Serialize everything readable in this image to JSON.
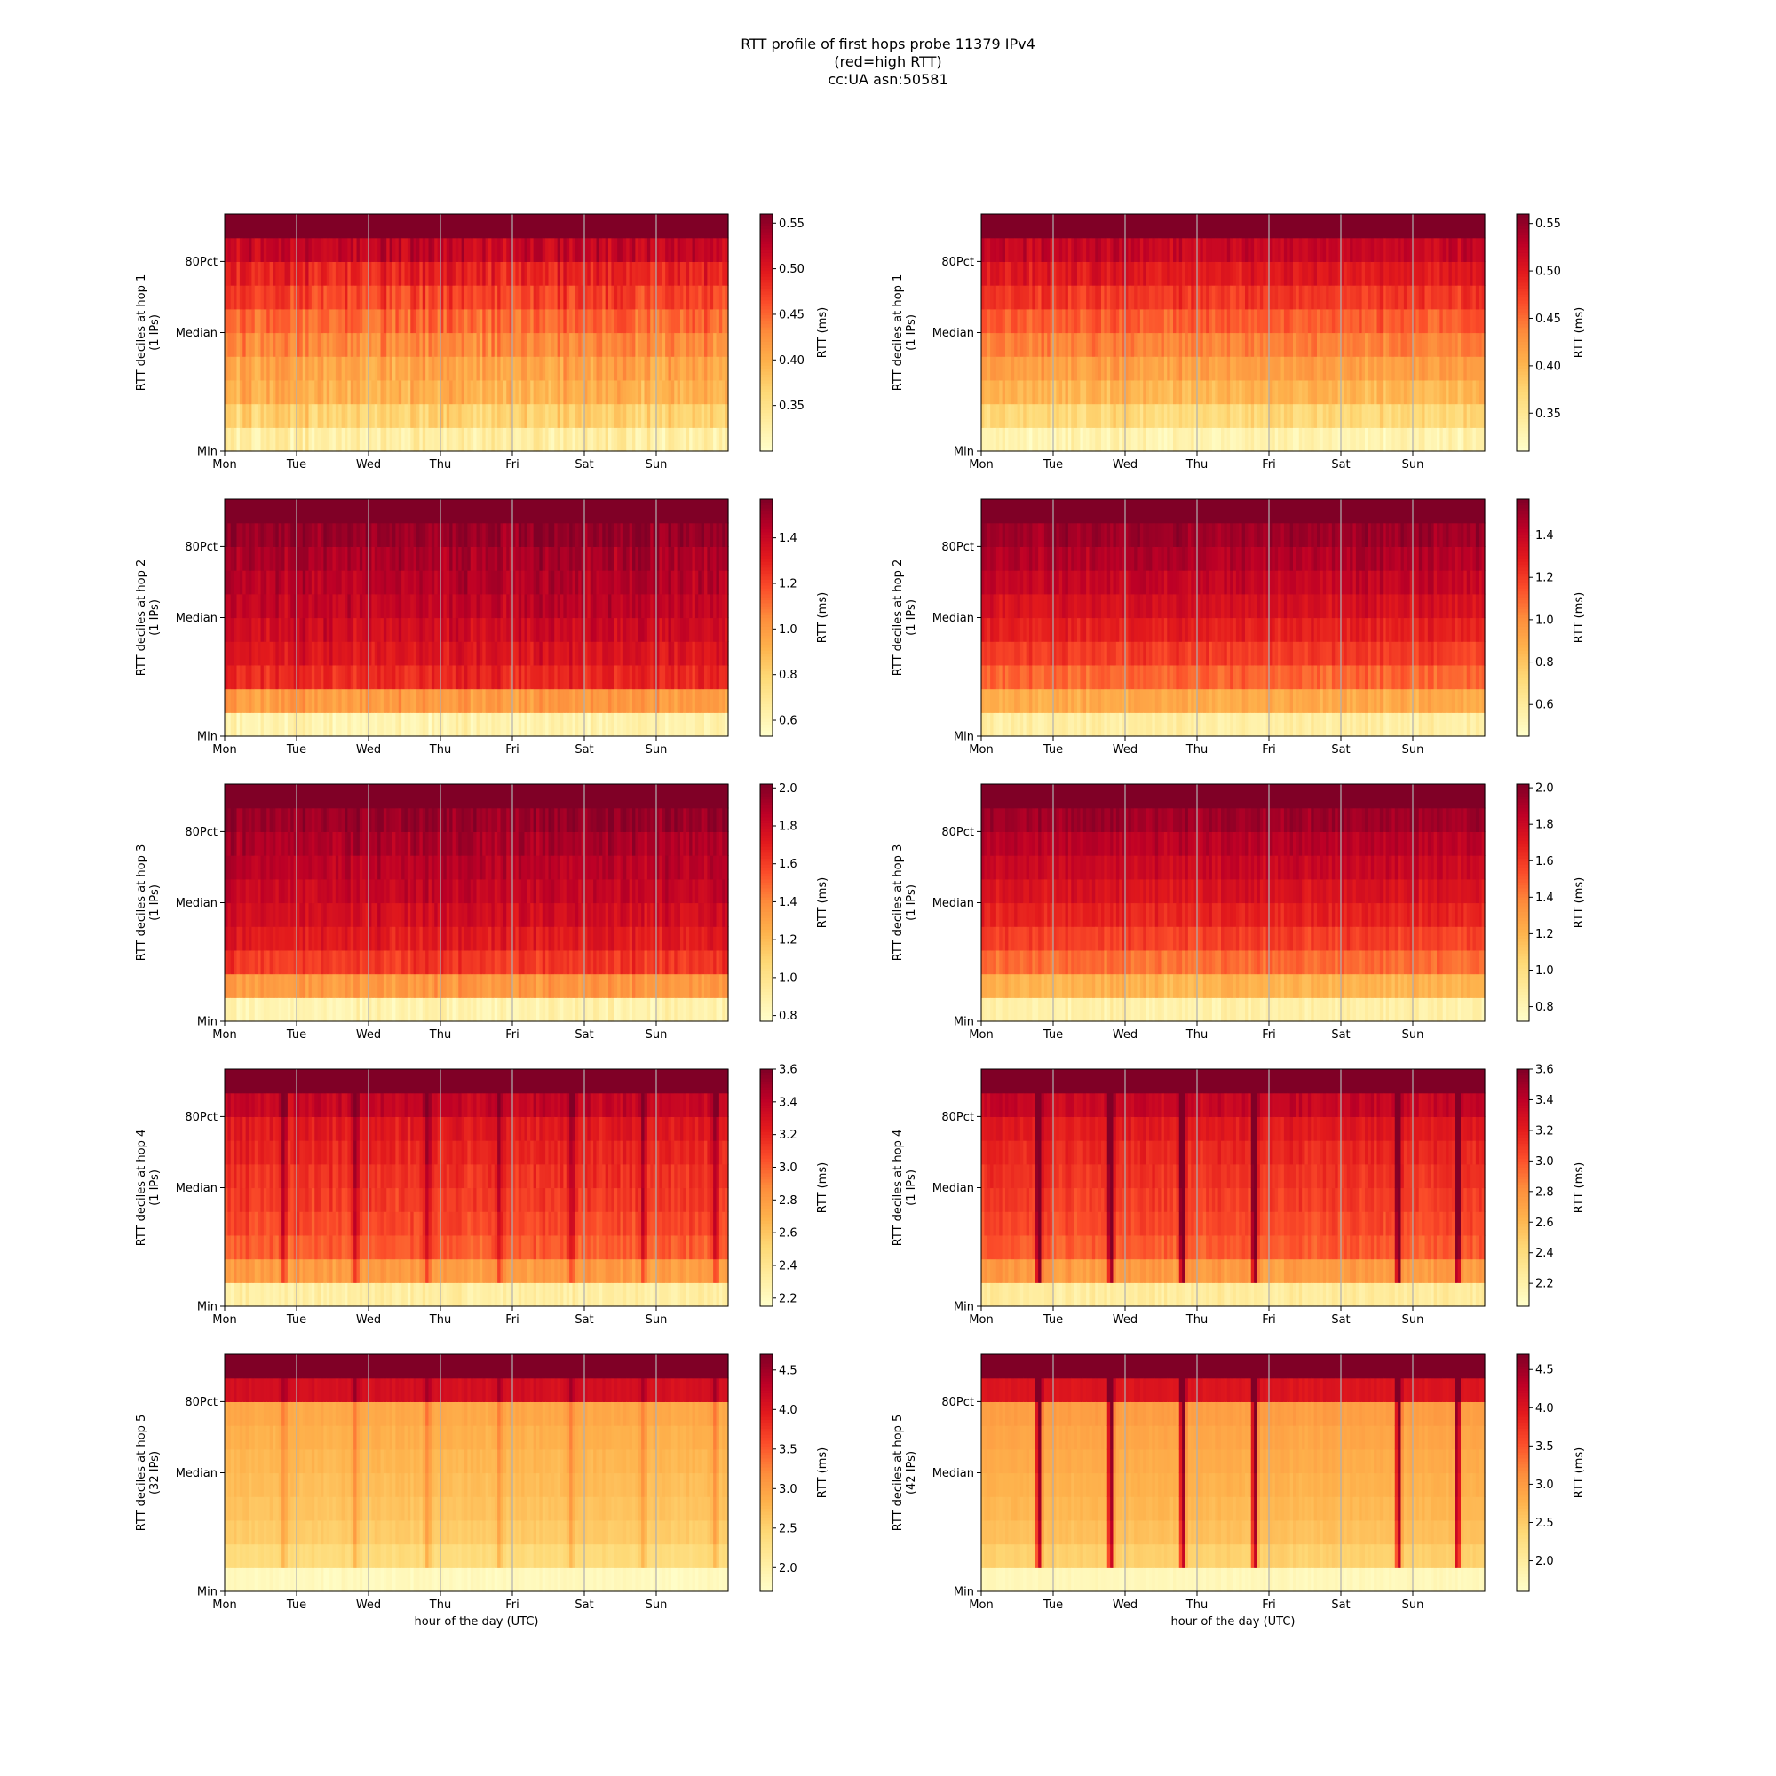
{
  "figure": {
    "title_lines": [
      "RTT profile of first hops probe 11379 IPv4",
      "(red=high RTT)",
      "cc:UA asn:50581"
    ]
  },
  "colormap": [
    "#ffffcc",
    "#ffeda0",
    "#fed976",
    "#feb24c",
    "#fd8d3c",
    "#fc4e2a",
    "#e31a1c",
    "#bd0026",
    "#800026"
  ],
  "chart_data": [
    {
      "type": "heatmap",
      "hop": 1,
      "ylabel": "RTT deciles at hop 1",
      "ylabel2": "(1 IPs)",
      "xlabel": "",
      "x_ticks": [
        "Mon",
        "Tue",
        "Wed",
        "Thu",
        "Fri",
        "Sat",
        "Sun"
      ],
      "y_ticks": [
        "Min",
        "Median",
        "80Pct"
      ],
      "colorbar_label": "RTT (ms)",
      "colorbar_ticks": [
        "0.35",
        "0.40",
        "0.45",
        "0.50",
        "0.55"
      ],
      "colorbar_tick_values": [
        0.35,
        0.4,
        0.45,
        0.5,
        0.55
      ],
      "vmin": 0.3,
      "vmax": 0.56,
      "decile_profile": [
        0.33,
        0.37,
        0.4,
        0.41,
        0.43,
        0.45,
        0.47,
        0.49,
        0.52,
        0.56
      ],
      "variability": 0.025,
      "dips": [],
      "grid": true
    },
    {
      "type": "heatmap",
      "hop": 1,
      "ylabel": "RTT deciles at hop 1",
      "ylabel2": "(1 IPs)",
      "xlabel": "",
      "x_ticks": [
        "Mon",
        "Tue",
        "Wed",
        "Thu",
        "Fri",
        "Sat",
        "Sun"
      ],
      "y_ticks": [
        "Min",
        "Median",
        "80Pct"
      ],
      "colorbar_label": "RTT (ms)",
      "colorbar_ticks": [
        "0.35",
        "0.40",
        "0.45",
        "0.50",
        "0.55"
      ],
      "colorbar_tick_values": [
        0.35,
        0.4,
        0.45,
        0.5,
        0.55
      ],
      "vmin": 0.31,
      "vmax": 0.56,
      "decile_profile": [
        0.33,
        0.37,
        0.4,
        0.42,
        0.44,
        0.46,
        0.48,
        0.5,
        0.52,
        0.56
      ],
      "variability": 0.018,
      "dips": [],
      "grid": true
    },
    {
      "type": "heatmap",
      "hop": 2,
      "ylabel": "RTT deciles at hop 2",
      "ylabel2": "(1 IPs)",
      "xlabel": "",
      "x_ticks": [
        "Mon",
        "Tue",
        "Wed",
        "Thu",
        "Fri",
        "Sat",
        "Sun"
      ],
      "y_ticks": [
        "Min",
        "Median",
        "80Pct"
      ],
      "colorbar_label": "RTT (ms)",
      "colorbar_ticks": [
        "0.6",
        "0.8",
        "1.0",
        "1.2",
        "1.4"
      ],
      "colorbar_tick_values": [
        0.6,
        0.8,
        1.0,
        1.2,
        1.4
      ],
      "vmin": 0.53,
      "vmax": 1.57,
      "decile_profile": [
        0.62,
        1.0,
        1.28,
        1.34,
        1.38,
        1.42,
        1.45,
        1.48,
        1.52,
        1.57
      ],
      "variability": 0.08,
      "dips": [],
      "grid": true
    },
    {
      "type": "heatmap",
      "hop": 2,
      "ylabel": "RTT deciles at hop 2",
      "ylabel2": "(1 IPs)",
      "xlabel": "",
      "x_ticks": [
        "Mon",
        "Tue",
        "Wed",
        "Thu",
        "Fri",
        "Sat",
        "Sun"
      ],
      "y_ticks": [
        "Min",
        "Median",
        "80Pct"
      ],
      "colorbar_label": "RTT (ms)",
      "colorbar_ticks": [
        "0.6",
        "0.8",
        "1.0",
        "1.2",
        "1.4"
      ],
      "colorbar_tick_values": [
        0.6,
        0.8,
        1.0,
        1.2,
        1.4
      ],
      "vmin": 0.45,
      "vmax": 1.57,
      "decile_profile": [
        0.58,
        0.9,
        1.1,
        1.2,
        1.28,
        1.34,
        1.4,
        1.45,
        1.5,
        1.57
      ],
      "variability": 0.07,
      "dips": [],
      "grid": true
    },
    {
      "type": "heatmap",
      "hop": 3,
      "ylabel": "RTT deciles at hop 3",
      "ylabel2": "(1 IPs)",
      "xlabel": "",
      "x_ticks": [
        "Mon",
        "Tue",
        "Wed",
        "Thu",
        "Fri",
        "Sat",
        "Sun"
      ],
      "y_ticks": [
        "Min",
        "Median",
        "80Pct"
      ],
      "colorbar_label": "RTT (ms)",
      "colorbar_ticks": [
        "0.8",
        "1.0",
        "1.2",
        "1.4",
        "1.6",
        "1.8",
        "2.0"
      ],
      "colorbar_tick_values": [
        0.8,
        1.0,
        1.2,
        1.4,
        1.6,
        1.8,
        2.0
      ],
      "vmin": 0.77,
      "vmax": 2.02,
      "decile_profile": [
        0.88,
        1.35,
        1.62,
        1.72,
        1.78,
        1.83,
        1.87,
        1.91,
        1.96,
        2.02
      ],
      "variability": 0.09,
      "dips": [],
      "grid": true
    },
    {
      "type": "heatmap",
      "hop": 3,
      "ylabel": "RTT deciles at hop 3",
      "ylabel2": "(1 IPs)",
      "xlabel": "",
      "x_ticks": [
        "Mon",
        "Tue",
        "Wed",
        "Thu",
        "Fri",
        "Sat",
        "Sun"
      ],
      "y_ticks": [
        "Min",
        "Median",
        "80Pct"
      ],
      "colorbar_label": "RTT (ms)",
      "colorbar_ticks": [
        "0.8",
        "1.0",
        "1.2",
        "1.4",
        "1.6",
        "1.8",
        "2.0"
      ],
      "colorbar_tick_values": [
        0.8,
        1.0,
        1.2,
        1.4,
        1.6,
        1.8,
        2.0
      ],
      "vmin": 0.72,
      "vmax": 2.02,
      "decile_profile": [
        0.85,
        1.2,
        1.45,
        1.58,
        1.67,
        1.74,
        1.8,
        1.86,
        1.93,
        2.02
      ],
      "variability": 0.07,
      "dips": [],
      "grid": true
    },
    {
      "type": "heatmap",
      "hop": 4,
      "ylabel": "RTT deciles at hop 4",
      "ylabel2": "(1 IPs)",
      "xlabel": "",
      "x_ticks": [
        "Mon",
        "Tue",
        "Wed",
        "Thu",
        "Fri",
        "Sat",
        "Sun"
      ],
      "y_ticks": [
        "Min",
        "Median",
        "80Pct"
      ],
      "colorbar_label": "RTT (ms)",
      "colorbar_ticks": [
        "2.2",
        "2.4",
        "2.6",
        "2.8",
        "3.0",
        "3.2",
        "3.4",
        "3.6"
      ],
      "colorbar_tick_values": [
        2.2,
        2.4,
        2.6,
        2.8,
        3.0,
        3.2,
        3.4,
        3.6
      ],
      "vmin": 2.15,
      "vmax": 3.6,
      "decile_profile": [
        2.32,
        2.8,
        3.02,
        3.08,
        3.12,
        3.16,
        3.2,
        3.25,
        3.38,
        3.6
      ],
      "variability": 0.09,
      "dips": [
        0.8,
        1.8,
        2.8,
        3.8,
        4.8,
        5.8,
        6.8
      ],
      "dip_strength": 0.25,
      "grid": true
    },
    {
      "type": "heatmap",
      "hop": 4,
      "ylabel": "RTT deciles at hop 4",
      "ylabel2": "(1 IPs)",
      "xlabel": "",
      "x_ticks": [
        "Mon",
        "Tue",
        "Wed",
        "Thu",
        "Fri",
        "Sat",
        "Sun"
      ],
      "y_ticks": [
        "Min",
        "Median",
        "80Pct"
      ],
      "colorbar_label": "RTT (ms)",
      "colorbar_ticks": [
        "2.2",
        "2.4",
        "2.6",
        "2.8",
        "3.0",
        "3.2",
        "3.4",
        "3.6"
      ],
      "colorbar_tick_values": [
        2.2,
        2.4,
        2.6,
        2.8,
        3.0,
        3.2,
        3.4,
        3.6
      ],
      "vmin": 2.05,
      "vmax": 3.6,
      "decile_profile": [
        2.25,
        2.75,
        2.98,
        3.04,
        3.08,
        3.12,
        3.16,
        3.22,
        3.35,
        3.6
      ],
      "variability": 0.08,
      "dips": [
        0.78,
        1.78,
        2.78,
        3.78,
        5.78,
        6.6
      ],
      "dip_strength": 0.6,
      "grid": true
    },
    {
      "type": "heatmap",
      "hop": 5,
      "ylabel": "RTT deciles at hop 5",
      "ylabel2": "(32 IPs)",
      "xlabel": "hour of the day (UTC)",
      "x_ticks": [
        "Mon",
        "Tue",
        "Wed",
        "Thu",
        "Fri",
        "Sat",
        "Sun"
      ],
      "y_ticks": [
        "Min",
        "Median",
        "80Pct"
      ],
      "colorbar_label": "RTT (ms)",
      "colorbar_ticks": [
        "2.0",
        "2.5",
        "3.0",
        "3.5",
        "4.0",
        "4.5"
      ],
      "colorbar_tick_values": [
        2.0,
        2.5,
        3.0,
        3.5,
        4.0,
        4.5
      ],
      "vmin": 1.7,
      "vmax": 4.7,
      "decile_profile": [
        1.82,
        2.4,
        2.58,
        2.66,
        2.72,
        2.78,
        2.84,
        2.92,
        4.1,
        4.7
      ],
      "variability": 0.08,
      "dips": [
        0.8,
        1.8,
        2.8,
        3.8,
        4.8,
        5.8,
        6.8
      ],
      "dip_strength": 0.15,
      "grid": true
    },
    {
      "type": "heatmap",
      "hop": 5,
      "ylabel": "RTT deciles at hop 5",
      "ylabel2": "(42 IPs)",
      "xlabel": "hour of the day (UTC)",
      "x_ticks": [
        "Mon",
        "Tue",
        "Wed",
        "Thu",
        "Fri",
        "Sat",
        "Sun"
      ],
      "y_ticks": [
        "Min",
        "Median",
        "80Pct"
      ],
      "colorbar_label": "RTT (ms)",
      "colorbar_ticks": [
        "2.0",
        "2.5",
        "3.0",
        "3.5",
        "4.0",
        "4.5"
      ],
      "colorbar_tick_values": [
        2.0,
        2.5,
        3.0,
        3.5,
        4.0,
        4.5
      ],
      "vmin": 1.6,
      "vmax": 4.7,
      "decile_profile": [
        1.75,
        2.45,
        2.62,
        2.7,
        2.76,
        2.82,
        2.88,
        2.96,
        4.0,
        4.7
      ],
      "variability": 0.07,
      "dips": [
        0.78,
        1.78,
        2.78,
        3.78,
        5.78,
        6.6
      ],
      "dip_strength": 0.7,
      "grid": true
    }
  ]
}
